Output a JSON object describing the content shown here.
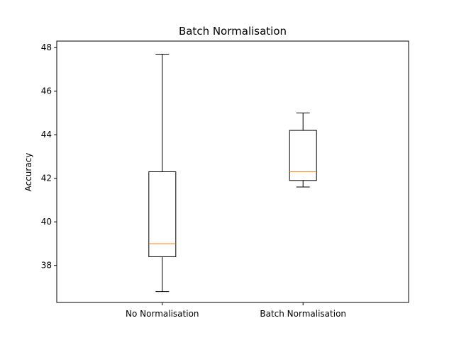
{
  "chart_data": {
    "type": "boxplot",
    "title": "Batch Normalisation",
    "xlabel": "",
    "ylabel": "Accuracy",
    "ylim": [
      36.3,
      48.3
    ],
    "yticks": [
      38,
      40,
      42,
      44,
      46,
      48
    ],
    "grid": false,
    "categories": [
      "No Normalisation",
      "Batch Normalisation"
    ],
    "boxes": [
      {
        "category": "No Normalisation",
        "whisker_low": 36.8,
        "q1": 38.4,
        "median": 39.0,
        "q3": 42.3,
        "whisker_high": 47.7
      },
      {
        "category": "Batch Normalisation",
        "whisker_low": 41.6,
        "q1": 41.9,
        "median": 42.3,
        "q3": 44.2,
        "whisker_high": 45.0
      }
    ],
    "colors": {
      "box": "#000000",
      "median": "#ff7f0e",
      "axes": "#000000"
    }
  }
}
